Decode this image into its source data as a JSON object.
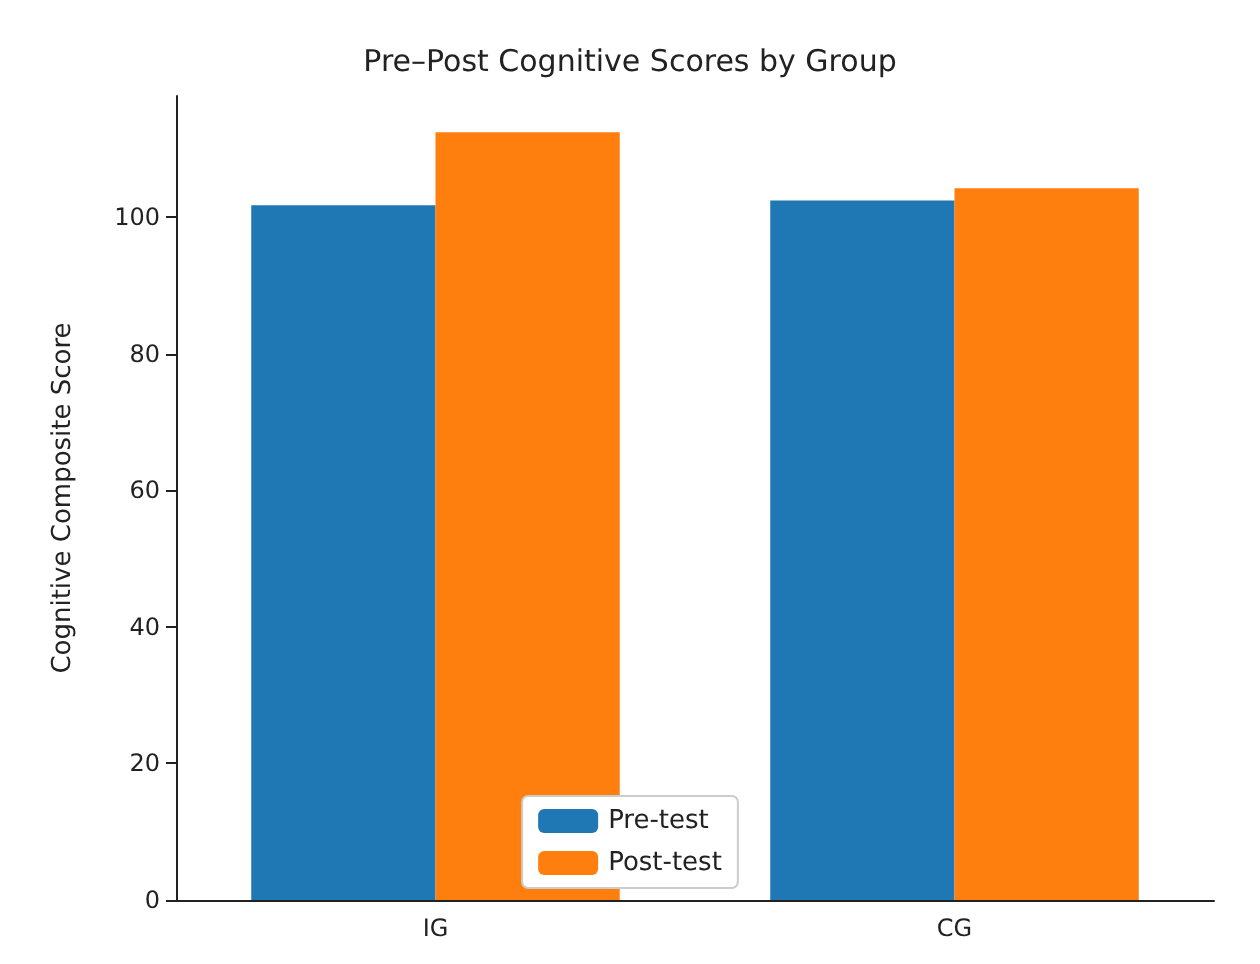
{
  "chart_data": {
    "type": "bar",
    "title": "Pre–Post Cognitive Scores by Group",
    "ylabel": "Cognitive Composite Score",
    "categories": [
      "IG",
      "CG"
    ],
    "series": [
      {
        "name": "Pre-test",
        "color": "#1f77b4",
        "values": [
          101.8,
          102.5
        ]
      },
      {
        "name": "Post-test",
        "color": "#ff7f0e",
        "values": [
          112.5,
          104.3
        ]
      }
    ],
    "ylim": [
      0,
      117.8
    ],
    "yticks": [
      0,
      20,
      40,
      60,
      80,
      100
    ],
    "grid": false,
    "legend": "bottom"
  }
}
